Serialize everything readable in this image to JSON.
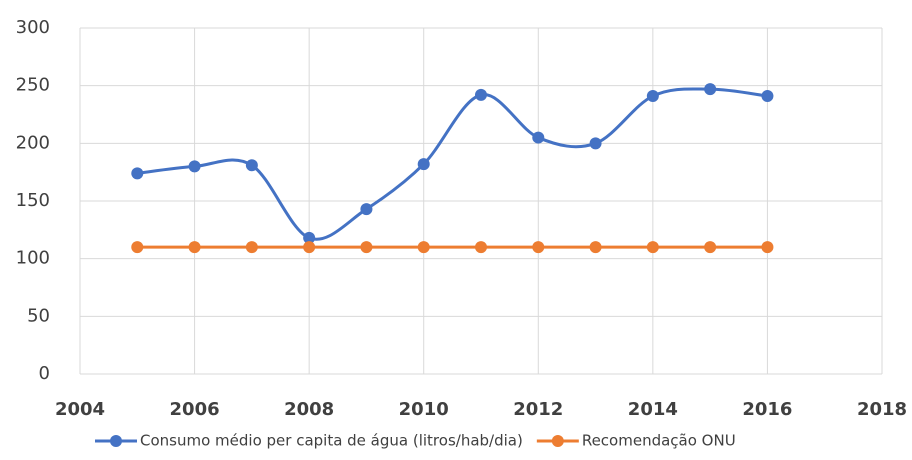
{
  "chart_data": {
    "type": "line",
    "x": [
      2005,
      2006,
      2007,
      2008,
      2009,
      2010,
      2011,
      2012,
      2013,
      2014,
      2015,
      2016
    ],
    "series": [
      {
        "name": "Consumo médio per capita de água (litros/hab/dia)",
        "color": "#4472c4",
        "values": [
          174,
          180,
          181,
          118,
          143,
          182,
          242,
          205,
          200,
          241,
          247,
          241
        ]
      },
      {
        "name": "Recomendação ONU",
        "color": "#ed7d31",
        "values": [
          110,
          110,
          110,
          110,
          110,
          110,
          110,
          110,
          110,
          110,
          110,
          110
        ]
      }
    ],
    "xlim": [
      2004,
      2018
    ],
    "xticks": [
      2004,
      2006,
      2008,
      2010,
      2012,
      2014,
      2016,
      2018
    ],
    "ylim": [
      0,
      300
    ],
    "yticks": [
      0,
      50,
      100,
      150,
      200,
      250,
      300
    ],
    "grid": true,
    "smooth": true,
    "legend": "bottom"
  }
}
